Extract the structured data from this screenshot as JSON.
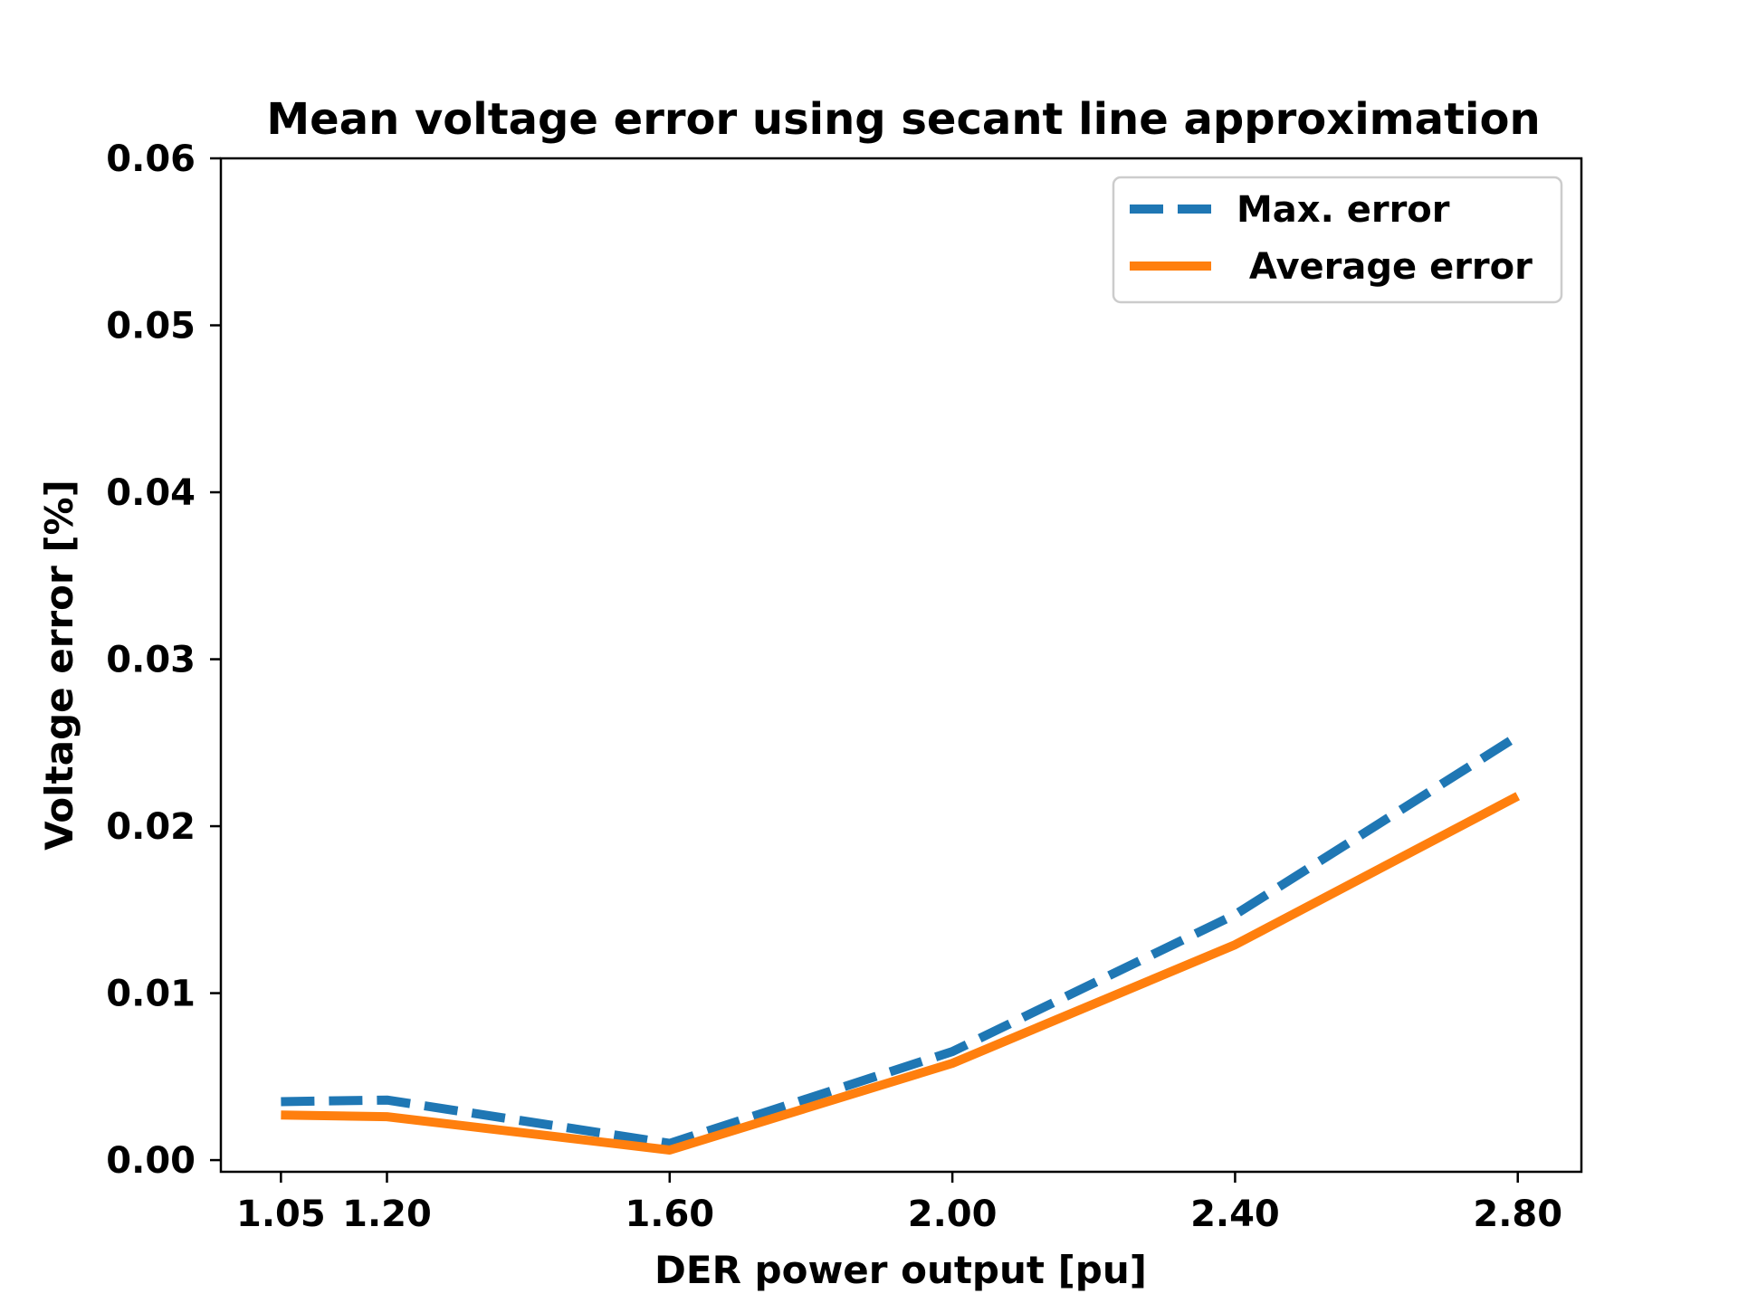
{
  "chart_data": {
    "type": "line",
    "title": "Mean voltage error using secant line approximation",
    "xlabel": "DER power output [pu]",
    "ylabel": "Voltage error [%]",
    "x": [
      1.05,
      1.2,
      1.6,
      2.0,
      2.4,
      2.8
    ],
    "x_tick_labels": [
      "1.05",
      "1.20",
      "1.60",
      "2.00",
      "2.40",
      "2.80"
    ],
    "y_ticks": [
      0.0,
      0.01,
      0.02,
      0.03,
      0.04,
      0.05,
      0.06
    ],
    "y_tick_labels": [
      "0.00",
      "0.01",
      "0.02",
      "0.03",
      "0.04",
      "0.05",
      "0.06"
    ],
    "xlim": [
      0.965,
      2.89
    ],
    "ylim": [
      -0.0007,
      0.06
    ],
    "grid": false,
    "legend_position": "upper right",
    "series": [
      {
        "name": "Max. error",
        "values": [
          0.0035,
          0.0036,
          0.001,
          0.0065,
          0.0147,
          0.0254
        ],
        "color": "#1f77b4",
        "style": "dashed"
      },
      {
        "name": " Average error",
        "values": [
          0.0027,
          0.0026,
          0.0006,
          0.0058,
          0.0129,
          0.0218
        ],
        "color": "#ff7f0e",
        "style": "solid"
      }
    ]
  }
}
